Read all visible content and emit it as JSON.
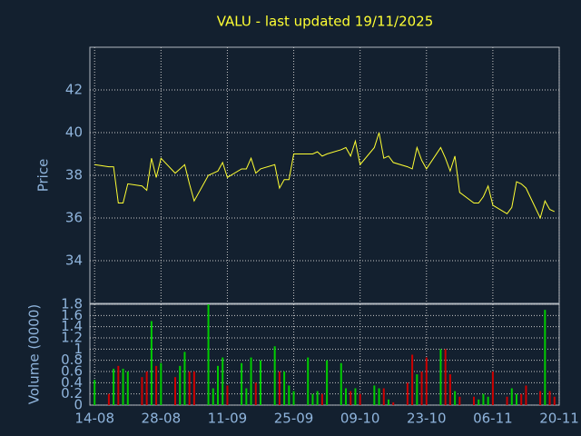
{
  "chart_data": [
    {
      "type": "line",
      "title": "VALU - last updated 19/11/2025",
      "ylabel": "Price",
      "color": "#ffff33",
      "x": [
        "14-08",
        "17-08",
        "18-08",
        "19-08",
        "20-08",
        "21-08",
        "24-08",
        "25-08",
        "26-08",
        "27-08",
        "28-08",
        "31-08",
        "01-09",
        "02-09",
        "03-09",
        "04-09",
        "07-09",
        "08-09",
        "09-09",
        "10-09",
        "11-09",
        "14-09",
        "15-09",
        "16-09",
        "17-09",
        "18-09",
        "21-09",
        "22-09",
        "23-09",
        "24-09",
        "25-09",
        "28-09",
        "29-09",
        "30-09",
        "01-10",
        "02-10",
        "05-10",
        "06-10",
        "07-10",
        "08-10",
        "09-10",
        "12-10",
        "13-10",
        "14-10",
        "15-10",
        "16-10",
        "19-10",
        "20-10",
        "21-10",
        "22-10",
        "23-10",
        "26-10",
        "27-10",
        "28-10",
        "29-10",
        "30-10",
        "02-11",
        "03-11",
        "04-11",
        "05-11",
        "06-11",
        "09-11",
        "10-11",
        "11-11",
        "12-11",
        "13-11",
        "16-11",
        "17-11",
        "18-11",
        "19-11"
      ],
      "values": [
        38.5,
        38.4,
        38.4,
        36.7,
        36.7,
        37.6,
        37.5,
        37.3,
        38.8,
        37.9,
        38.8,
        38.1,
        38.3,
        38.5,
        37.6,
        36.8,
        38.0,
        38.1,
        38.2,
        38.6,
        37.9,
        38.3,
        38.3,
        38.8,
        38.1,
        38.3,
        38.5,
        37.4,
        37.8,
        37.8,
        39.0,
        39.0,
        39.0,
        39.1,
        38.9,
        39.0,
        39.2,
        39.3,
        38.9,
        39.6,
        38.5,
        39.3,
        40.0,
        38.8,
        38.9,
        38.6,
        38.4,
        38.3,
        39.3,
        38.7,
        38.3,
        39.3,
        38.8,
        38.2,
        38.9,
        37.2,
        36.7,
        36.7,
        37.0,
        37.5,
        36.6,
        36.2,
        36.5,
        37.7,
        37.6,
        37.4,
        36.0,
        36.8,
        36.4,
        36.3
      ],
      "ylim": [
        32,
        44
      ],
      "yticks": [
        34,
        36,
        38,
        40,
        42
      ],
      "xlim": [
        "13-08",
        "20-11"
      ],
      "xticks": [
        "14-08",
        "28-08",
        "11-09",
        "25-09",
        "09-10",
        "23-10",
        "06-11",
        "20-11"
      ],
      "grid": true
    },
    {
      "type": "bar",
      "ylabel": "Volume (0000)",
      "up_color": "#00cc00",
      "down_color": "#cc0000",
      "x": [
        "14-08",
        "17-08",
        "18-08",
        "19-08",
        "20-08",
        "21-08",
        "24-08",
        "25-08",
        "26-08",
        "27-08",
        "28-08",
        "31-08",
        "01-09",
        "02-09",
        "03-09",
        "04-09",
        "07-09",
        "08-09",
        "09-09",
        "10-09",
        "11-09",
        "14-09",
        "15-09",
        "16-09",
        "17-09",
        "18-09",
        "21-09",
        "22-09",
        "23-09",
        "24-09",
        "25-09",
        "28-09",
        "29-09",
        "30-09",
        "01-10",
        "02-10",
        "05-10",
        "06-10",
        "07-10",
        "08-10",
        "09-10",
        "12-10",
        "13-10",
        "14-10",
        "15-10",
        "16-10",
        "19-10",
        "20-10",
        "21-10",
        "22-10",
        "23-10",
        "26-10",
        "27-10",
        "28-10",
        "29-10",
        "30-10",
        "02-11",
        "03-11",
        "04-11",
        "05-11",
        "06-11",
        "09-11",
        "10-11",
        "11-11",
        "12-11",
        "13-11",
        "16-11",
        "17-11",
        "18-11",
        "19-11"
      ],
      "values": [
        0.45,
        0.2,
        0.65,
        0.7,
        0.65,
        0.6,
        0.5,
        0.6,
        1.5,
        0.7,
        0.75,
        0.5,
        0.7,
        0.95,
        0.6,
        0.6,
        1.8,
        0.3,
        0.7,
        0.85,
        0.35,
        0.75,
        0.3,
        0.85,
        0.4,
        0.8,
        1.05,
        0.6,
        0.6,
        0.35,
        0.25,
        0.85,
        0.2,
        0.25,
        0.2,
        0.8,
        0.75,
        0.3,
        0.25,
        0.3,
        0.2,
        0.35,
        0.3,
        0.3,
        0.1,
        0.05,
        0.4,
        0.9,
        0.55,
        0.6,
        0.85,
        1.0,
        1.0,
        0.55,
        0.25,
        0.15,
        0.15,
        0.1,
        0.2,
        0.15,
        0.6,
        0.15,
        0.3,
        0.2,
        0.2,
        0.35,
        0.25,
        1.7,
        0.25,
        0.15
      ],
      "ylim": [
        0,
        1.8
      ],
      "yticks": [
        0,
        0.2,
        0.4,
        0.6,
        0.8,
        1,
        1.2,
        1.4,
        1.6,
        1.8
      ],
      "xlim": [
        "13-08",
        "20-11"
      ],
      "xticks": [
        "14-08",
        "28-08",
        "11-09",
        "25-09",
        "09-10",
        "23-10",
        "06-11",
        "20-11"
      ],
      "grid": true
    }
  ]
}
